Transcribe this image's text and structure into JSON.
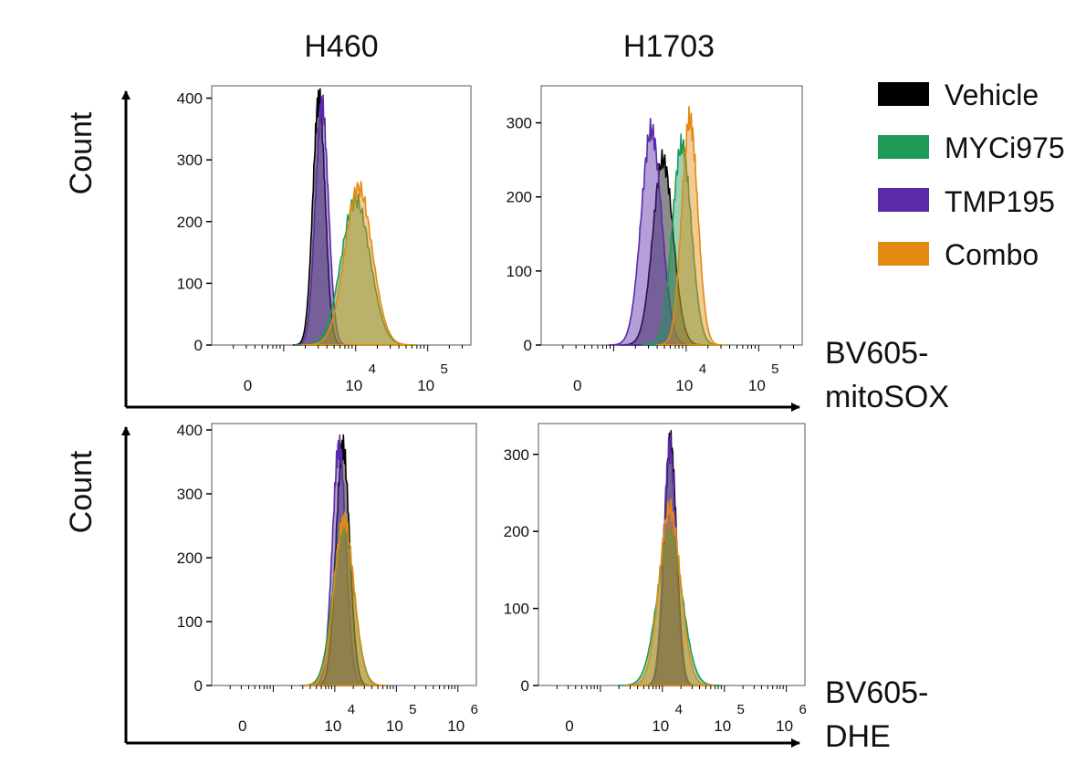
{
  "colors": {
    "Vehicle": "#000000",
    "MYCi975": "#1f9a55",
    "TMP195": "#5b2aa8",
    "Combo": "#e38a12"
  },
  "figure": {
    "columns": [
      "H460",
      "H1703"
    ],
    "row_ylabels": [
      "Count",
      "Count"
    ],
    "row_xlabels": [
      [
        "BV605-",
        "mitoSOX"
      ],
      [
        "BV605-",
        "DHE"
      ]
    ]
  },
  "legend": [
    {
      "label": "Vehicle",
      "color": "#000000"
    },
    {
      "label": "MYCi975",
      "color": "#1f9a55"
    },
    {
      "label": "TMP195",
      "color": "#5b2aa8"
    },
    {
      "label": "Combo",
      "color": "#e38a12"
    }
  ],
  "chart_data": [
    {
      "type": "area",
      "title": "H460",
      "xlabel": "BV605-mitoSOX",
      "ylabel": "Count",
      "x_scale": "biexponential log10",
      "xlim": [
        2.0,
        5.6
      ],
      "ylim": [
        0,
        420
      ],
      "y_ticks": [
        0,
        100,
        200,
        300,
        400
      ],
      "x_ticks": [
        {
          "label": "0",
          "x": 2.5
        },
        {
          "base": "10",
          "exp": "4",
          "x": 4.0
        },
        {
          "base": "10",
          "exp": "5",
          "x": 5.0
        }
      ],
      "series": [
        {
          "name": "Vehicle",
          "peak": 3.49,
          "height": 400,
          "sd": 0.085
        },
        {
          "name": "TMP195",
          "peak": 3.53,
          "height": 390,
          "sd": 0.09
        },
        {
          "name": "MYCi975",
          "peak": 4.0,
          "height": 235,
          "sd": 0.2
        },
        {
          "name": "Combo",
          "peak": 4.04,
          "height": 255,
          "sd": 0.19
        }
      ]
    },
    {
      "type": "area",
      "title": "H1703",
      "xlabel": "BV605-mitoSOX",
      "ylabel": "Count",
      "x_scale": "biexponential log10",
      "xlim": [
        2.0,
        5.6
      ],
      "ylim": [
        0,
        350
      ],
      "y_ticks": [
        0,
        100,
        200,
        300
      ],
      "x_ticks": [
        {
          "label": "0",
          "x": 2.5
        },
        {
          "base": "10",
          "exp": "4",
          "x": 4.0
        },
        {
          "base": "10",
          "exp": "5",
          "x": 5.0
        }
      ],
      "series": [
        {
          "name": "TMP195",
          "peak": 3.52,
          "height": 290,
          "sd": 0.14
        },
        {
          "name": "Vehicle",
          "peak": 3.68,
          "height": 250,
          "sd": 0.14
        },
        {
          "name": "MYCi975",
          "peak": 3.94,
          "height": 270,
          "sd": 0.13
        },
        {
          "name": "Combo",
          "peak": 4.05,
          "height": 305,
          "sd": 0.11
        }
      ]
    },
    {
      "type": "area",
      "title": "H460",
      "xlabel": "BV605-DHE",
      "ylabel": "Count",
      "x_scale": "biexponential log10",
      "xlim": [
        2.0,
        6.3
      ],
      "ylim": [
        0,
        410
      ],
      "y_ticks": [
        0,
        100,
        200,
        300,
        400
      ],
      "x_ticks": [
        {
          "label": "0",
          "x": 2.5
        },
        {
          "base": "10",
          "exp": "4",
          "x": 4.0
        },
        {
          "base": "10",
          "exp": "5",
          "x": 5.0
        },
        {
          "base": "10",
          "exp": "6",
          "x": 6.0
        }
      ],
      "series": [
        {
          "name": "Vehicle",
          "peak": 4.13,
          "height": 375,
          "sd": 0.11
        },
        {
          "name": "TMP195",
          "peak": 4.07,
          "height": 375,
          "sd": 0.11
        },
        {
          "name": "MYCi975",
          "peak": 4.14,
          "height": 250,
          "sd": 0.17
        },
        {
          "name": "Combo",
          "peak": 4.15,
          "height": 260,
          "sd": 0.16
        }
      ]
    },
    {
      "type": "area",
      "title": "H1703",
      "xlabel": "BV605-DHE",
      "ylabel": "Count",
      "x_scale": "biexponential log10",
      "xlim": [
        2.0,
        6.3
      ],
      "ylim": [
        0,
        340
      ],
      "y_ticks": [
        0,
        100,
        200,
        300
      ],
      "x_ticks": [
        {
          "label": "0",
          "x": 2.5
        },
        {
          "base": "10",
          "exp": "4",
          "x": 4.0
        },
        {
          "base": "10",
          "exp": "5",
          "x": 5.0
        },
        {
          "base": "10",
          "exp": "6",
          "x": 6.0
        }
      ],
      "series": [
        {
          "name": "Vehicle",
          "peak": 4.13,
          "height": 315,
          "sd": 0.1
        },
        {
          "name": "TMP195",
          "peak": 4.12,
          "height": 310,
          "sd": 0.1
        },
        {
          "name": "MYCi975",
          "peak": 4.12,
          "height": 195,
          "sd": 0.2
        },
        {
          "name": "Combo",
          "peak": 4.12,
          "height": 230,
          "sd": 0.17
        }
      ]
    }
  ]
}
